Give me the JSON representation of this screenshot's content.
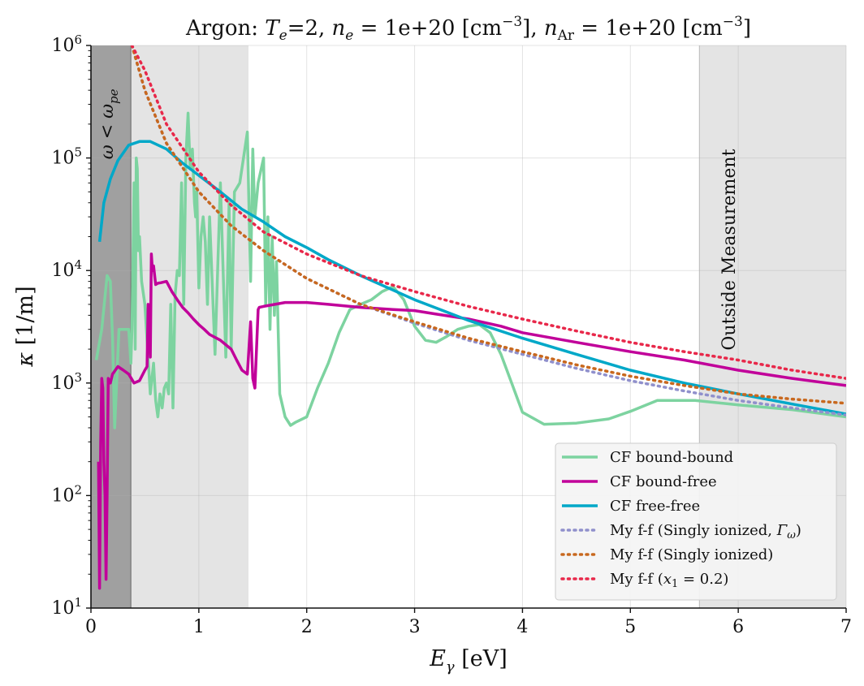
{
  "chart_data": {
    "type": "line",
    "title": "Argon: T_e=2, n_e = 1e+20 [cm^-3], n_Ar = 1e+20 [cm^-3]",
    "title_parts": {
      "p1": "Argon: ",
      "te": "T",
      "te_sub": "e",
      "p2": "=2, ",
      "ne": "n",
      "ne_sub": "e",
      "p3": " = 1e+20 [cm",
      "exp": "−3",
      "p4": "], ",
      "nar": "n",
      "nar_sub": "Ar",
      "p5": " = 1e+20 [cm",
      "p6": "]"
    },
    "xlabel": "E_γ [eV]",
    "xlabel_parts": {
      "sym": "E",
      "sub": "γ",
      "unit": " [eV]"
    },
    "ylabel": "κ [1/m]",
    "ylabel_parts": {
      "sym": "κ",
      "unit": " [1/m]"
    },
    "xlim": [
      0,
      7
    ],
    "ylim": [
      10,
      1000000
    ],
    "yscale": "log",
    "grid": true,
    "legend_position": "lower-right",
    "x_ticks": [
      {
        "value": 0,
        "label": "0"
      },
      {
        "value": 1,
        "label": "1"
      },
      {
        "value": 2,
        "label": "2"
      },
      {
        "value": 3,
        "label": "3"
      },
      {
        "value": 4,
        "label": "4"
      },
      {
        "value": 5,
        "label": "5"
      },
      {
        "value": 6,
        "label": "6"
      },
      {
        "value": 7,
        "label": "7"
      }
    ],
    "y_ticks": [
      {
        "value": 10,
        "base": "10",
        "exp": "1"
      },
      {
        "value": 100,
        "base": "10",
        "exp": "2"
      },
      {
        "value": 1000,
        "base": "10",
        "exp": "3"
      },
      {
        "value": 10000,
        "base": "10",
        "exp": "4"
      },
      {
        "value": 100000,
        "base": "10",
        "exp": "5"
      },
      {
        "value": 1000000,
        "base": "10",
        "exp": "6"
      }
    ],
    "shaded_regions": [
      {
        "x0": 0,
        "x1": 0.37,
        "color": "#a0a0a0"
      },
      {
        "x0": 0.37,
        "x1": 1.46,
        "color": "#e4e4e4"
      },
      {
        "x0": 5.64,
        "x1": 7,
        "color": "#e4e4e4"
      }
    ],
    "annotations": [
      {
        "text": "ω < ω_pe",
        "x": 0.18,
        "y": 200000,
        "rotation": -90
      },
      {
        "text": "Outside Measurement",
        "x": 5.85,
        "y": 12000,
        "rotation": -90
      }
    ],
    "series": [
      {
        "name": "CF bound-bound",
        "color": "#7dd3a0",
        "style": "solid",
        "width": 3.5,
        "x": [
          0.05,
          0.1,
          0.15,
          0.18,
          0.2,
          0.22,
          0.26,
          0.3,
          0.35,
          0.37,
          0.38,
          0.4,
          0.41,
          0.42,
          0.43,
          0.44,
          0.45,
          0.47,
          0.5,
          0.55,
          0.58,
          0.6,
          0.62,
          0.64,
          0.66,
          0.68,
          0.7,
          0.72,
          0.74,
          0.76,
          0.78,
          0.8,
          0.82,
          0.84,
          0.86,
          0.88,
          0.9,
          0.92,
          0.94,
          0.96,
          0.97,
          0.98,
          1.0,
          1.02,
          1.04,
          1.06,
          1.08,
          1.1,
          1.15,
          1.2,
          1.25,
          1.28,
          1.3,
          1.33,
          1.38,
          1.45,
          1.48,
          1.5,
          1.52,
          1.55,
          1.6,
          1.62,
          1.64,
          1.66,
          1.68,
          1.7,
          1.72,
          1.75,
          1.8,
          1.85,
          1.9,
          2.0,
          2.1,
          2.2,
          2.3,
          2.4,
          2.5,
          2.6,
          2.7,
          2.8,
          2.9,
          3.0,
          3.1,
          3.2,
          3.3,
          3.4,
          3.5,
          3.6,
          3.7,
          3.8,
          3.9,
          4.0,
          4.2,
          4.5,
          4.8,
          5.0,
          5.25,
          5.6,
          6.0,
          6.5,
          7.0
        ],
        "y": [
          1600,
          3000,
          9000,
          8000,
          2500,
          400,
          3000,
          3000,
          3000,
          1500,
          3000,
          60000,
          2000,
          100000,
          80000,
          15000,
          20000,
          8000,
          5000,
          800,
          1500,
          700,
          500,
          800,
          600,
          900,
          1000,
          800,
          5000,
          600,
          6000,
          10000,
          9000,
          60000,
          5000,
          100000,
          250000,
          80000,
          120000,
          40000,
          30000,
          50000,
          7000,
          20000,
          30000,
          18000,
          5000,
          30000,
          1800,
          60000,
          1700,
          40000,
          2000,
          50000,
          60000,
          170000,
          8000,
          120000,
          30000,
          60000,
          100000,
          5000,
          30000,
          3000,
          20000,
          4000,
          12000,
          800,
          500,
          420,
          450,
          500,
          900,
          1500,
          2800,
          4500,
          5000,
          5500,
          6500,
          7200,
          5500,
          3200,
          2400,
          2300,
          2600,
          3000,
          3200,
          3300,
          2800,
          1800,
          1000,
          550,
          430,
          440,
          480,
          560,
          700,
          700,
          640,
          580,
          500
        ]
      },
      {
        "name": "CF bound-free",
        "color": "#c1009a",
        "style": "solid",
        "width": 3.5,
        "x": [
          0.07,
          0.08,
          0.09,
          0.1,
          0.11,
          0.12,
          0.13,
          0.14,
          0.15,
          0.16,
          0.18,
          0.2,
          0.25,
          0.3,
          0.35,
          0.4,
          0.45,
          0.5,
          0.52,
          0.53,
          0.55,
          0.56,
          0.57,
          0.58,
          0.6,
          0.62,
          0.65,
          0.7,
          0.75,
          0.8,
          0.85,
          0.9,
          0.95,
          1.0,
          1.05,
          1.1,
          1.2,
          1.3,
          1.35,
          1.4,
          1.45,
          1.48,
          1.5,
          1.52,
          1.55,
          1.56,
          1.6,
          1.8,
          2.0,
          2.2,
          2.5,
          2.8,
          3.0,
          3.2,
          3.5,
          3.8,
          4.0,
          4.5,
          5.0,
          5.5,
          6.0,
          6.5,
          7.0
        ],
        "y": [
          200,
          15,
          300,
          1100,
          900,
          200,
          100,
          18,
          100,
          1100,
          1000,
          1200,
          1400,
          1300,
          1200,
          1000,
          1050,
          1300,
          1400,
          5000,
          1700,
          14000,
          10000,
          11000,
          7500,
          7700,
          7800,
          8000,
          6500,
          5500,
          4700,
          4200,
          3700,
          3300,
          3000,
          2700,
          2400,
          2000,
          1600,
          1300,
          1200,
          3500,
          1100,
          900,
          4500,
          4700,
          4800,
          5200,
          5200,
          5000,
          4700,
          4500,
          4400,
          4100,
          3700,
          3200,
          2800,
          2300,
          1900,
          1600,
          1300,
          1100,
          950
        ]
      },
      {
        "name": "CF free-free",
        "color": "#00a8c8",
        "style": "solid",
        "width": 3.5,
        "x": [
          0.08,
          0.12,
          0.18,
          0.25,
          0.35,
          0.45,
          0.55,
          0.7,
          0.85,
          1.0,
          1.2,
          1.4,
          1.6,
          1.8,
          2.0,
          2.2,
          2.5,
          3.0,
          3.5,
          4.0,
          4.5,
          5.0,
          5.5,
          6.0,
          6.5,
          7.0
        ],
        "y": [
          18000,
          40000,
          65000,
          95000,
          130000,
          140000,
          140000,
          120000,
          90000,
          70000,
          50000,
          35000,
          27000,
          20000,
          16000,
          12500,
          9000,
          5500,
          3600,
          2500,
          1800,
          1300,
          1000,
          800,
          650,
          530
        ]
      },
      {
        "name": "My f-f (Singly ionized, Γ_ω)",
        "color": "#9090cc",
        "style": "dotted",
        "width": 3.5,
        "x": [
          0.38,
          0.5,
          0.7,
          1.0,
          1.3,
          1.6,
          2.0,
          2.5,
          3.0,
          3.5,
          4.0,
          4.5,
          5.0,
          5.5,
          6.0,
          6.5,
          7.0
        ],
        "y": [
          1000000,
          400000,
          135000,
          50000,
          25000,
          15000,
          8500,
          5000,
          3400,
          2400,
          1800,
          1350,
          1050,
          850,
          700,
          600,
          520
        ]
      },
      {
        "name": "My f-f (Singly ionized)",
        "color": "#c8681e",
        "style": "dotted",
        "width": 3.5,
        "x": [
          0.38,
          0.5,
          0.7,
          1.0,
          1.3,
          1.6,
          2.0,
          2.5,
          3.0,
          3.5,
          4.0,
          4.5,
          5.0,
          5.5,
          6.0,
          6.5,
          7.0
        ],
        "y": [
          1000000,
          400000,
          135000,
          50000,
          25000,
          15000,
          8500,
          5000,
          3500,
          2500,
          1900,
          1450,
          1150,
          950,
          800,
          720,
          660
        ]
      },
      {
        "name": "My f-f (x_1 = 0.2)",
        "color": "#e8284a",
        "style": "dotted",
        "width": 3.5,
        "x": [
          0.38,
          0.5,
          0.7,
          1.0,
          1.3,
          1.6,
          2.0,
          2.5,
          3.0,
          3.5,
          4.0,
          4.5,
          5.0,
          5.5,
          6.0,
          6.5,
          7.0
        ],
        "y": [
          1000000,
          600000,
          200000,
          75000,
          38000,
          22000,
          14000,
          9000,
          6500,
          4800,
          3700,
          2900,
          2300,
          1900,
          1600,
          1300,
          1100
        ]
      }
    ],
    "legend": [
      {
        "label": "CF bound-bound",
        "color": "#7dd3a0",
        "style": "solid"
      },
      {
        "label": "CF bound-free",
        "color": "#c1009a",
        "style": "solid"
      },
      {
        "label": "CF free-free",
        "color": "#00a8c8",
        "style": "solid"
      },
      {
        "label": "My f-f (Singly ionized, Γω)",
        "color": "#9090cc",
        "style": "dotted",
        "parts": {
          "p1": "My f-f (Singly ionized, ",
          "g": "Γ",
          "sub": "ω",
          "p2": ")"
        }
      },
      {
        "label": "My f-f (Singly ionized)",
        "color": "#c8681e",
        "style": "dotted"
      },
      {
        "label": "My f-f (x1 = 0.2)",
        "color": "#e8284a",
        "style": "dotted",
        "parts": {
          "p1": "My f-f (",
          "sym": "x",
          "sub": "1",
          "p2": " = 0.2)"
        }
      }
    ],
    "annotation_parts": {
      "omega": {
        "a": "ω",
        "b": " < ",
        "c": "ω",
        "sub": "pe"
      },
      "outside": "Outside Measurement"
    }
  }
}
